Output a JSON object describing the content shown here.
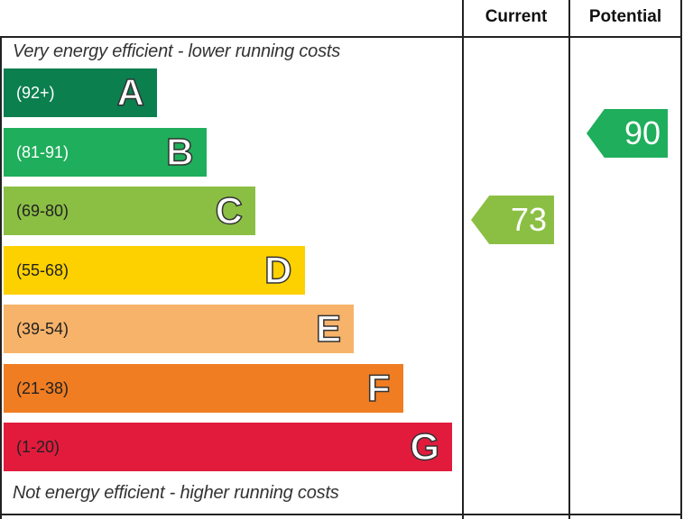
{
  "chart_data": {
    "type": "bar",
    "title": "",
    "columns": [
      "Current",
      "Potential"
    ],
    "top_caption": "Very energy efficient - lower running costs",
    "bottom_caption": "Not energy efficient - higher running costs",
    "bands": [
      {
        "letter": "A",
        "range": "(92+)",
        "color": "#0c7f4f"
      },
      {
        "letter": "B",
        "range": "(81-91)",
        "color": "#1fae5b"
      },
      {
        "letter": "C",
        "range": "(69-80)",
        "color": "#8bbf44"
      },
      {
        "letter": "D",
        "range": "(55-68)",
        "color": "#fdd100"
      },
      {
        "letter": "E",
        "range": "(39-54)",
        "color": "#f7b36a"
      },
      {
        "letter": "F",
        "range": "(21-38)",
        "color": "#f07d22"
      },
      {
        "letter": "G",
        "range": "(1-20)",
        "color": "#e21b3d"
      }
    ],
    "ratings": [
      {
        "column": "Current",
        "value": 73,
        "band": "C",
        "color": "#8bbf44"
      },
      {
        "column": "Potential",
        "value": 90,
        "band": "B",
        "color": "#1fae5b"
      }
    ]
  }
}
